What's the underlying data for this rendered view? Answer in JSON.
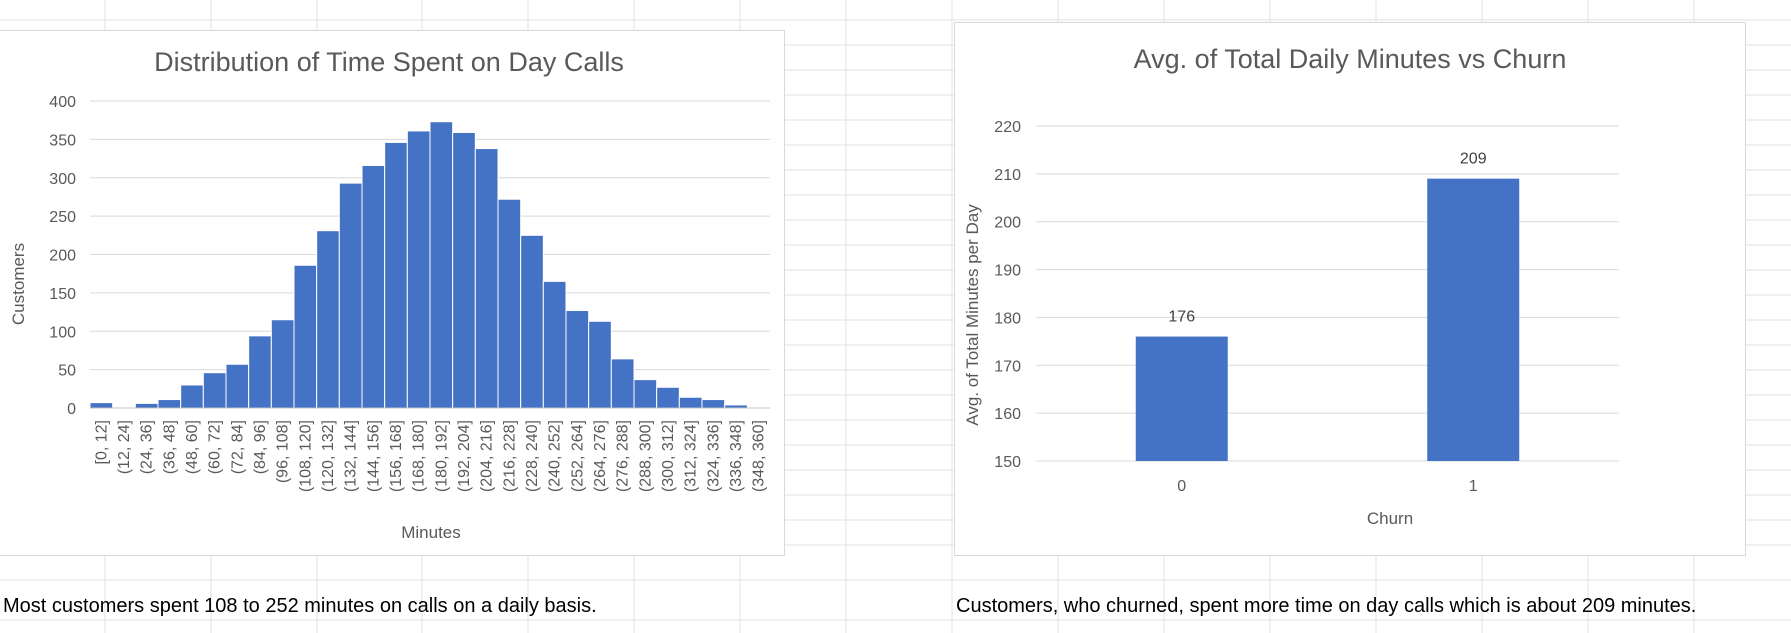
{
  "spreadsheet": {
    "captions": {
      "left": "Most customers spent 108 to 252 minutes on calls on a daily basis.",
      "right": "Customers, who churned, spent more time on day calls which is about 209 minutes."
    }
  },
  "colors": {
    "bar": "#4472C4",
    "gridline": "#d9d9d9",
    "text": "#595959"
  },
  "chart_data": [
    {
      "type": "bar",
      "title": "Distribution of Time Spent on Day Calls",
      "xlabel": "Minutes",
      "ylabel": "Customers",
      "ylim": [
        0,
        400
      ],
      "yticks": [
        0,
        50,
        100,
        150,
        200,
        250,
        300,
        350,
        400
      ],
      "grid": true,
      "categories": [
        "[0, 12]",
        "(12, 24]",
        "(24, 36]",
        "(36, 48]",
        "(48, 60]",
        "(60, 72]",
        "(72, 84]",
        "(84, 96]",
        "(96, 108]",
        "(108, 120]",
        "(120, 132]",
        "(132, 144]",
        "(144, 156]",
        "(156, 168]",
        "(168, 180]",
        "(180, 192]",
        "(192, 204]",
        "(204, 216]",
        "(216, 228]",
        "(228, 240]",
        "(240, 252]",
        "(252, 264]",
        "(264, 276]",
        "(276, 288]",
        "(288, 300]",
        "(300, 312]",
        "(312, 324]",
        "(324, 336]",
        "(336, 348]",
        "(348, 360]"
      ],
      "values": [
        7,
        0,
        6,
        11,
        30,
        46,
        57,
        94,
        115,
        186,
        231,
        293,
        316,
        346,
        361,
        373,
        359,
        338,
        272,
        225,
        165,
        127,
        113,
        64,
        37,
        27,
        14,
        11,
        4,
        0
      ]
    },
    {
      "type": "bar",
      "title": "Avg. of Total Daily Minutes vs Churn",
      "xlabel": "Churn",
      "ylabel": "Avg. of  Total Minutes per Day",
      "ylim": [
        150,
        220
      ],
      "yticks": [
        150,
        160,
        170,
        180,
        190,
        200,
        210,
        220
      ],
      "grid": true,
      "categories": [
        "0",
        "1"
      ],
      "values": [
        176,
        209
      ],
      "data_labels": [
        "176",
        "209"
      ]
    }
  ]
}
